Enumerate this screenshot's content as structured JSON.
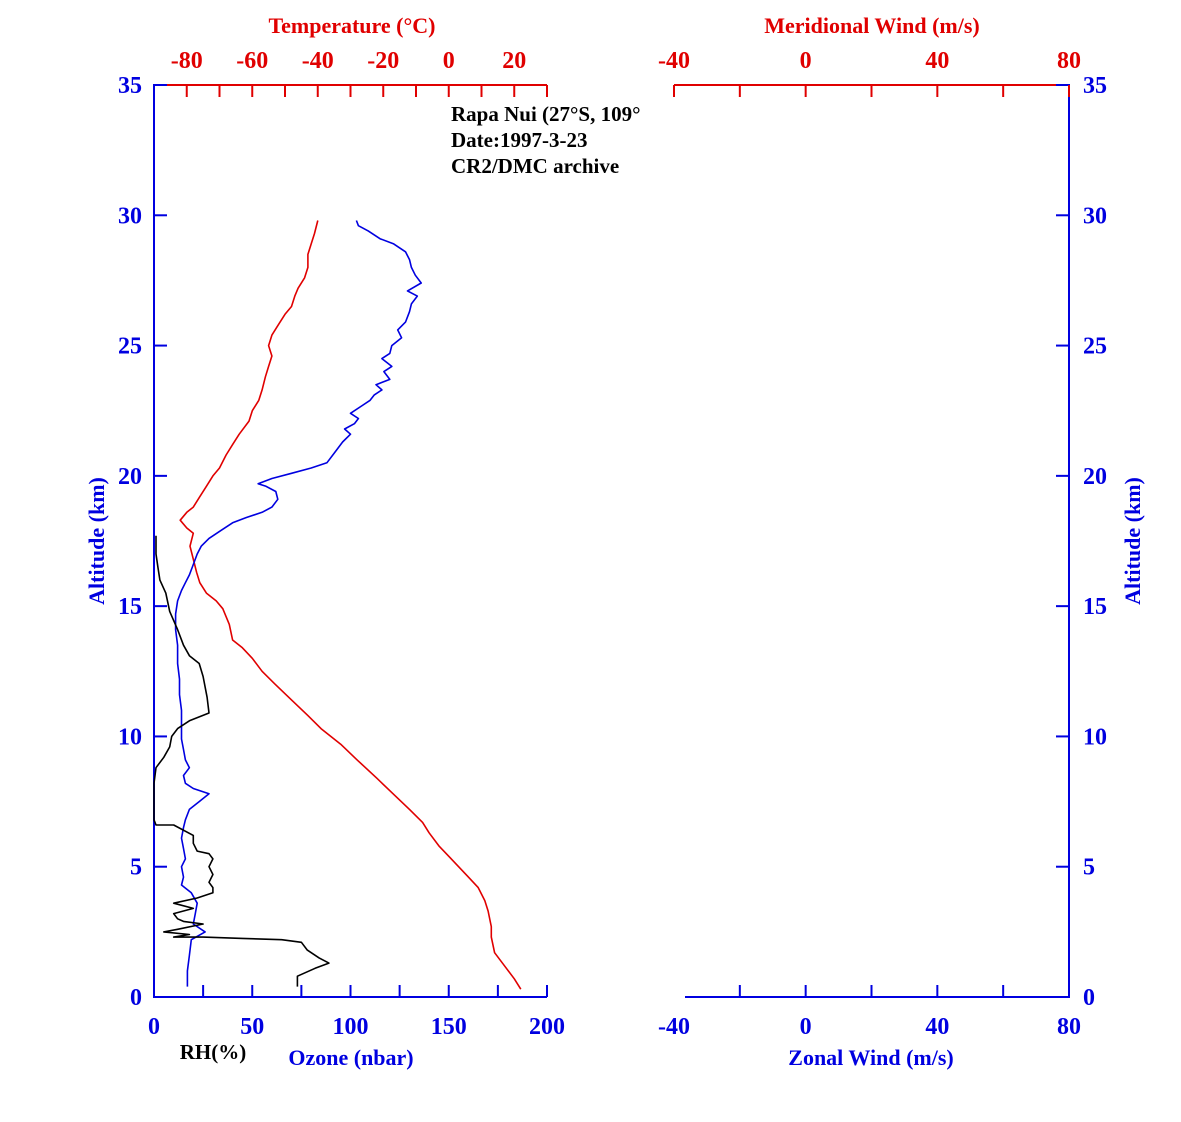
{
  "chart_data": {
    "type": "line",
    "annotation": [
      "Rapa Nui (27°S, 109°",
      "Date:1997-3-23",
      "CR2/DMC archive"
    ],
    "left_panel": {
      "top_axis": {
        "label": "Temperature (°C)",
        "range": [
          -90,
          30
        ],
        "ticks": [
          -80,
          -60,
          -40,
          -20,
          0,
          20
        ],
        "color": "#e00000"
      },
      "bottom_axis": {
        "label": "Ozone (nbar)",
        "range": [
          0,
          200
        ],
        "ticks": [
          0,
          50,
          100,
          150,
          200
        ],
        "color": "#0000e0"
      },
      "secondary_label": "RH(%)",
      "y_axis": {
        "label": "Altitude (km)",
        "range": [
          0,
          35
        ],
        "ticks": [
          0,
          5,
          10,
          15,
          20,
          25,
          30,
          35
        ],
        "color": "#0000e0"
      },
      "series": [
        {
          "key": "temperature",
          "color": "#e00000",
          "axis": "top",
          "points": [
            [
              22,
              0.3
            ],
            [
              20,
              0.7
            ],
            [
              17,
              1.2
            ],
            [
              14,
              1.7
            ],
            [
              13,
              2.3
            ],
            [
              13,
              2.7
            ],
            [
              12,
              3.3
            ],
            [
              11,
              3.7
            ],
            [
              9,
              4.2
            ],
            [
              6,
              4.6
            ],
            [
              3,
              5.0
            ],
            [
              0,
              5.4
            ],
            [
              -3,
              5.8
            ],
            [
              -6,
              6.3
            ],
            [
              -8,
              6.7
            ],
            [
              -12,
              7.2
            ],
            [
              -17,
              7.8
            ],
            [
              -22,
              8.4
            ],
            [
              -28,
              9.1
            ],
            [
              -33,
              9.7
            ],
            [
              -39,
              10.3
            ],
            [
              -43,
              10.8
            ],
            [
              -48,
              11.4
            ],
            [
              -53,
              12.0
            ],
            [
              -57,
              12.5
            ],
            [
              -60,
              13.0
            ],
            [
              -63,
              13.4
            ],
            [
              -66,
              13.7
            ],
            [
              -67,
              14.3
            ],
            [
              -69,
              14.9
            ],
            [
              -71,
              15.2
            ],
            [
              -74,
              15.5
            ],
            [
              -76,
              15.9
            ],
            [
              -77,
              16.3
            ],
            [
              -78,
              16.8
            ],
            [
              -79,
              17.3
            ],
            [
              -78,
              17.8
            ],
            [
              -80,
              18.0
            ],
            [
              -82,
              18.3
            ],
            [
              -80,
              18.6
            ],
            [
              -78,
              18.8
            ],
            [
              -76,
              19.2
            ],
            [
              -74,
              19.6
            ],
            [
              -72,
              20.0
            ],
            [
              -70,
              20.3
            ],
            [
              -68,
              20.8
            ],
            [
              -66,
              21.2
            ],
            [
              -64,
              21.6
            ],
            [
              -61,
              22.1
            ],
            [
              -60,
              22.5
            ],
            [
              -58,
              22.9
            ],
            [
              -57,
              23.3
            ],
            [
              -56,
              23.8
            ],
            [
              -55,
              24.2
            ],
            [
              -54,
              24.6
            ],
            [
              -55,
              25.0
            ],
            [
              -54,
              25.4
            ],
            [
              -52,
              25.8
            ],
            [
              -50,
              26.2
            ],
            [
              -48,
              26.5
            ],
            [
              -47,
              26.9
            ],
            [
              -46,
              27.2
            ],
            [
              -44,
              27.6
            ],
            [
              -43,
              28.0
            ],
            [
              -43,
              28.5
            ],
            [
              -42,
              28.9
            ],
            [
              -41,
              29.3
            ],
            [
              -40,
              29.8
            ]
          ]
        },
        {
          "key": "ozone",
          "color": "#0000e0",
          "axis": "bottom",
          "points": [
            [
              17,
              0.4
            ],
            [
              17,
              1.0
            ],
            [
              18,
              1.6
            ],
            [
              19,
              2.2
            ],
            [
              26,
              2.5
            ],
            [
              20,
              2.8
            ],
            [
              21,
              3.2
            ],
            [
              22,
              3.6
            ],
            [
              19,
              4.0
            ],
            [
              14,
              4.3
            ],
            [
              15,
              4.6
            ],
            [
              14,
              5.0
            ],
            [
              16,
              5.3
            ],
            [
              15,
              5.7
            ],
            [
              14,
              6.1
            ],
            [
              15,
              6.5
            ],
            [
              16,
              6.8
            ],
            [
              18,
              7.2
            ],
            [
              23,
              7.5
            ],
            [
              28,
              7.8
            ],
            [
              20,
              8.0
            ],
            [
              16,
              8.2
            ],
            [
              15,
              8.5
            ],
            [
              18,
              8.8
            ],
            [
              16,
              9.1
            ],
            [
              15,
              9.5
            ],
            [
              14,
              9.9
            ],
            [
              14,
              10.5
            ],
            [
              14,
              11.0
            ],
            [
              13,
              11.6
            ],
            [
              13,
              12.2
            ],
            [
              12,
              12.8
            ],
            [
              12,
              13.5
            ],
            [
              11,
              14.1
            ],
            [
              11,
              14.7
            ],
            [
              12,
              15.2
            ],
            [
              14,
              15.6
            ],
            [
              16,
              15.9
            ],
            [
              18,
              16.2
            ],
            [
              20,
              16.6
            ],
            [
              22,
              17.0
            ],
            [
              24,
              17.3
            ],
            [
              28,
              17.6
            ],
            [
              34,
              17.9
            ],
            [
              40,
              18.2
            ],
            [
              47,
              18.4
            ],
            [
              55,
              18.6
            ],
            [
              60,
              18.8
            ],
            [
              63,
              19.1
            ],
            [
              62,
              19.4
            ],
            [
              57,
              19.6
            ],
            [
              53,
              19.7
            ],
            [
              60,
              19.9
            ],
            [
              70,
              20.1
            ],
            [
              80,
              20.3
            ],
            [
              88,
              20.5
            ],
            [
              92,
              20.9
            ],
            [
              96,
              21.3
            ],
            [
              100,
              21.6
            ],
            [
              97,
              21.8
            ],
            [
              102,
              22.0
            ],
            [
              104,
              22.2
            ],
            [
              100,
              22.4
            ],
            [
              106,
              22.7
            ],
            [
              110,
              22.9
            ],
            [
              112,
              23.1
            ],
            [
              116,
              23.3
            ],
            [
              113,
              23.5
            ],
            [
              120,
              23.7
            ],
            [
              117,
              24.0
            ],
            [
              121,
              24.2
            ],
            [
              116,
              24.5
            ],
            [
              120,
              24.7
            ],
            [
              121,
              25.0
            ],
            [
              126,
              25.3
            ],
            [
              124,
              25.6
            ],
            [
              128,
              25.9
            ],
            [
              130,
              26.3
            ],
            [
              131,
              26.6
            ],
            [
              134,
              26.9
            ],
            [
              129,
              27.1
            ],
            [
              136,
              27.4
            ],
            [
              133,
              27.7
            ],
            [
              131,
              28.0
            ],
            [
              130,
              28.3
            ],
            [
              128,
              28.6
            ],
            [
              122,
              28.9
            ],
            [
              115,
              29.1
            ],
            [
              109,
              29.4
            ],
            [
              104,
              29.6
            ],
            [
              103,
              29.8
            ]
          ]
        },
        {
          "key": "rh",
          "color": "#000000",
          "axis": "bottom",
          "points": [
            [
              73,
              0.4
            ],
            [
              73,
              0.8
            ],
            [
              82,
              1.1
            ],
            [
              89,
              1.3
            ],
            [
              84,
              1.5
            ],
            [
              78,
              1.8
            ],
            [
              75,
              2.1
            ],
            [
              65,
              2.2
            ],
            [
              45,
              2.25
            ],
            [
              25,
              2.3
            ],
            [
              10,
              2.3
            ],
            [
              18,
              2.4
            ],
            [
              5,
              2.5
            ],
            [
              12,
              2.6
            ],
            [
              25,
              2.8
            ],
            [
              15,
              2.9
            ],
            [
              12,
              3.0
            ],
            [
              10,
              3.2
            ],
            [
              20,
              3.4
            ],
            [
              10,
              3.6
            ],
            [
              22,
              3.8
            ],
            [
              30,
              4.0
            ],
            [
              30,
              4.2
            ],
            [
              28,
              4.4
            ],
            [
              30,
              4.7
            ],
            [
              28,
              5.0
            ],
            [
              30,
              5.3
            ],
            [
              28,
              5.5
            ],
            [
              22,
              5.6
            ],
            [
              20,
              5.9
            ],
            [
              20,
              6.2
            ],
            [
              10,
              6.6
            ],
            [
              1,
              6.6
            ],
            [
              0,
              6.8
            ],
            [
              0,
              7.5
            ],
            [
              0,
              8.2
            ],
            [
              1,
              8.8
            ],
            [
              5,
              9.2
            ],
            [
              8,
              9.6
            ],
            [
              9,
              10.0
            ],
            [
              12,
              10.3
            ],
            [
              18,
              10.6
            ],
            [
              28,
              10.9
            ],
            [
              27,
              11.5
            ],
            [
              25,
              12.3
            ],
            [
              23,
              12.8
            ],
            [
              18,
              13.1
            ],
            [
              15,
              13.5
            ],
            [
              12,
              14.1
            ],
            [
              8,
              14.8
            ],
            [
              6,
              15.5
            ],
            [
              3,
              16.0
            ],
            [
              2,
              16.5
            ],
            [
              1,
              17.0
            ],
            [
              1,
              17.7
            ]
          ]
        }
      ]
    },
    "right_panel": {
      "top_axis": {
        "label": "Meridional Wind (m/s)",
        "range": [
          -40,
          80
        ],
        "ticks": [
          -40,
          0,
          40,
          80
        ],
        "color": "#e00000"
      },
      "bottom_axis": {
        "label": "Zonal Wind (m/s)",
        "range": [
          -40,
          80
        ],
        "ticks": [
          -40,
          0,
          40,
          80
        ],
        "color": "#0000e0"
      },
      "y_axis": {
        "label": "Altitude (km)",
        "range": [
          0,
          35
        ],
        "ticks": [
          0,
          5,
          10,
          15,
          20,
          25,
          30,
          35
        ],
        "color": "#0000e0"
      },
      "series": []
    }
  }
}
